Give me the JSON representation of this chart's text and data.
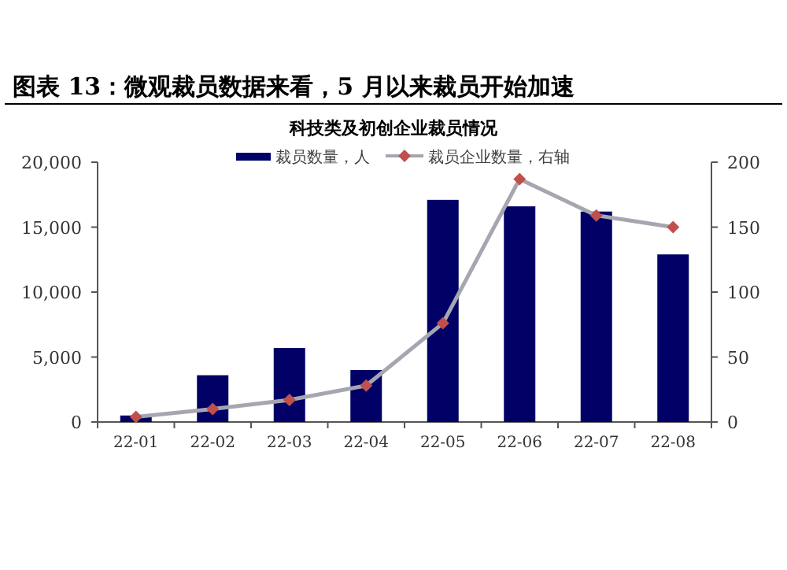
{
  "chart_data": {
    "type": "bar",
    "title": "图表 13：微观裁员数据来看，5 月以来裁员开始加速",
    "subtitle": "科技类及初创企业裁员情况",
    "categories": [
      "22-01",
      "22-02",
      "22-03",
      "22-04",
      "22-05",
      "22-06",
      "22-07",
      "22-08"
    ],
    "series": [
      {
        "name": "裁员数量，人",
        "color": "#000066",
        "values": [
          500,
          3600,
          5700,
          4000,
          17100,
          16600,
          16200,
          12900
        ]
      },
      {
        "name": "裁员企业数量，右轴",
        "type": "line",
        "axis": "y2",
        "color": "#a6a6b0",
        "colors": [
          "#c0504d",
          "#c0504d",
          "#c0504d",
          "#c0504d",
          "#c0504d",
          "#c0504d",
          "#c0504d",
          "#c0504d"
        ],
        "values": [
          4,
          10,
          17,
          28,
          76,
          187,
          159,
          150
        ]
      }
    ],
    "ylim": [
      0,
      20000
    ],
    "yticks": [
      0,
      {
        "value": 5000,
        "label": "5,000"
      },
      {
        "value": 10000,
        "label": "10,000"
      },
      {
        "value": 15000,
        "label": "15,000"
      },
      {
        "value": 20000,
        "label": "20,000"
      }
    ],
    "y2lim": [
      0,
      200
    ],
    "y2ticks": [
      0,
      50,
      100,
      150,
      200
    ],
    "marker": "diamond",
    "legend": "top",
    "grid": false
  }
}
